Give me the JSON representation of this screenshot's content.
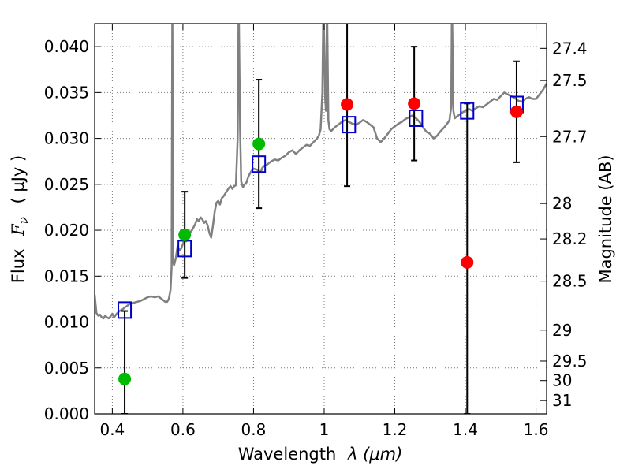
{
  "chart_data": {
    "type": "scatter",
    "title": "",
    "xlabel_main": "Wavelength",
    "xlabel_math": "λ (μm)",
    "ylabel_main": "Flux",
    "ylabel_math": "F",
    "ylabel_sub": "ν",
    "ylabel_unit": "( μJy )",
    "y2label": "Magnitude (AB)",
    "xlim": [
      0.35,
      1.63
    ],
    "ylim": [
      0.0,
      0.0425
    ],
    "grid": true,
    "x_ticks": [
      {
        "value": 0.4,
        "label": "0.4"
      },
      {
        "value": 0.6,
        "label": "0.6"
      },
      {
        "value": 0.8,
        "label": "0.8"
      },
      {
        "value": 1.0,
        "label": "1"
      },
      {
        "value": 1.2,
        "label": "1.2"
      },
      {
        "value": 1.4,
        "label": "1.4"
      },
      {
        "value": 1.6,
        "label": "1.6"
      }
    ],
    "y_ticks": [
      {
        "value": 0.0,
        "label": "0.000"
      },
      {
        "value": 0.005,
        "label": "0.005"
      },
      {
        "value": 0.01,
        "label": "0.010"
      },
      {
        "value": 0.015,
        "label": "0.015"
      },
      {
        "value": 0.02,
        "label": "0.020"
      },
      {
        "value": 0.025,
        "label": "0.025"
      },
      {
        "value": 0.03,
        "label": "0.030"
      },
      {
        "value": 0.035,
        "label": "0.035"
      },
      {
        "value": 0.04,
        "label": "0.040"
      }
    ],
    "magnitude_ticks": [
      {
        "mag": 27.4,
        "label": "27.4"
      },
      {
        "mag": 27.5,
        "label": "27.5"
      },
      {
        "mag": 27.7,
        "label": "27.7"
      },
      {
        "mag": 28.0,
        "label": "28"
      },
      {
        "mag": 28.2,
        "label": "28.2"
      },
      {
        "mag": 28.5,
        "label": "28.5"
      },
      {
        "mag": 29.0,
        "label": "29"
      },
      {
        "mag": 29.5,
        "label": "29.5"
      },
      {
        "mag": 30.0,
        "label": "30"
      },
      {
        "mag": 31.0,
        "label": "31"
      }
    ],
    "series": [
      {
        "kind": "spectrum",
        "color": "#808080",
        "points": [
          [
            0.35,
            0.013
          ],
          [
            0.355,
            0.011
          ],
          [
            0.36,
            0.0107
          ],
          [
            0.365,
            0.0108
          ],
          [
            0.37,
            0.0105
          ],
          [
            0.375,
            0.0104
          ],
          [
            0.38,
            0.0107
          ],
          [
            0.385,
            0.0105
          ],
          [
            0.39,
            0.0104
          ],
          [
            0.395,
            0.0106
          ],
          [
            0.4,
            0.0109
          ],
          [
            0.405,
            0.0105
          ],
          [
            0.41,
            0.0108
          ],
          [
            0.415,
            0.011
          ],
          [
            0.42,
            0.0112
          ],
          [
            0.425,
            0.0113
          ],
          [
            0.43,
            0.0114
          ],
          [
            0.435,
            0.0116
          ],
          [
            0.44,
            0.0117
          ],
          [
            0.45,
            0.012
          ],
          [
            0.46,
            0.0121
          ],
          [
            0.47,
            0.0122
          ],
          [
            0.48,
            0.0123
          ],
          [
            0.49,
            0.0125
          ],
          [
            0.5,
            0.0127
          ],
          [
            0.51,
            0.0128
          ],
          [
            0.52,
            0.0127
          ],
          [
            0.53,
            0.0128
          ],
          [
            0.54,
            0.0125
          ],
          [
            0.55,
            0.0122
          ],
          [
            0.555,
            0.0122
          ],
          [
            0.56,
            0.0125
          ],
          [
            0.565,
            0.0135
          ],
          [
            0.568,
            0.016
          ],
          [
            0.57,
            0.045
          ],
          [
            0.572,
            0.0165
          ],
          [
            0.575,
            0.0162
          ],
          [
            0.58,
            0.017
          ],
          [
            0.585,
            0.0183
          ],
          [
            0.59,
            0.0178
          ],
          [
            0.595,
            0.018
          ],
          [
            0.6,
            0.0185
          ],
          [
            0.605,
            0.019
          ],
          [
            0.61,
            0.0188
          ],
          [
            0.615,
            0.0193
          ],
          [
            0.62,
            0.0197
          ],
          [
            0.625,
            0.02
          ],
          [
            0.63,
            0.0203
          ],
          [
            0.635,
            0.0207
          ],
          [
            0.64,
            0.0212
          ],
          [
            0.645,
            0.021
          ],
          [
            0.65,
            0.0214
          ],
          [
            0.655,
            0.0212
          ],
          [
            0.66,
            0.0208
          ],
          [
            0.665,
            0.021
          ],
          [
            0.67,
            0.0205
          ],
          [
            0.675,
            0.0197
          ],
          [
            0.68,
            0.0192
          ],
          [
            0.685,
            0.0205
          ],
          [
            0.69,
            0.022
          ],
          [
            0.695,
            0.023
          ],
          [
            0.7,
            0.0232
          ],
          [
            0.705,
            0.0228
          ],
          [
            0.71,
            0.0235
          ],
          [
            0.715,
            0.0237
          ],
          [
            0.72,
            0.024
          ],
          [
            0.725,
            0.0243
          ],
          [
            0.73,
            0.0246
          ],
          [
            0.735,
            0.0248
          ],
          [
            0.74,
            0.0245
          ],
          [
            0.745,
            0.0248
          ],
          [
            0.75,
            0.0249
          ],
          [
            0.755,
            0.03
          ],
          [
            0.758,
            0.045
          ],
          [
            0.762,
            0.031
          ],
          [
            0.765,
            0.0253
          ],
          [
            0.77,
            0.0247
          ],
          [
            0.775,
            0.025
          ],
          [
            0.78,
            0.0252
          ],
          [
            0.785,
            0.0258
          ],
          [
            0.79,
            0.0262
          ],
          [
            0.795,
            0.0265
          ],
          [
            0.8,
            0.0267
          ],
          [
            0.81,
            0.0266
          ],
          [
            0.82,
            0.0263
          ],
          [
            0.825,
            0.0268
          ],
          [
            0.83,
            0.027
          ],
          [
            0.84,
            0.0272
          ],
          [
            0.85,
            0.0275
          ],
          [
            0.86,
            0.0277
          ],
          [
            0.87,
            0.0276
          ],
          [
            0.88,
            0.0279
          ],
          [
            0.89,
            0.0281
          ],
          [
            0.9,
            0.0285
          ],
          [
            0.91,
            0.0287
          ],
          [
            0.92,
            0.0283
          ],
          [
            0.93,
            0.0287
          ],
          [
            0.94,
            0.029
          ],
          [
            0.95,
            0.0293
          ],
          [
            0.96,
            0.0292
          ],
          [
            0.97,
            0.0296
          ],
          [
            0.98,
            0.03
          ],
          [
            0.985,
            0.0303
          ],
          [
            0.99,
            0.031
          ],
          [
            0.995,
            0.035
          ],
          [
            0.998,
            0.045
          ],
          [
            1.002,
            0.035
          ],
          [
            1.005,
            0.033
          ],
          [
            1.008,
            0.045
          ],
          [
            1.012,
            0.032
          ],
          [
            1.015,
            0.031
          ],
          [
            1.02,
            0.0308
          ],
          [
            1.03,
            0.0312
          ],
          [
            1.04,
            0.0315
          ],
          [
            1.05,
            0.0318
          ],
          [
            1.06,
            0.032
          ],
          [
            1.07,
            0.0318
          ],
          [
            1.08,
            0.0316
          ],
          [
            1.09,
            0.0315
          ],
          [
            1.1,
            0.0317
          ],
          [
            1.11,
            0.032
          ],
          [
            1.12,
            0.0318
          ],
          [
            1.13,
            0.0315
          ],
          [
            1.14,
            0.0312
          ],
          [
            1.15,
            0.03
          ],
          [
            1.16,
            0.0296
          ],
          [
            1.17,
            0.03
          ],
          [
            1.18,
            0.0305
          ],
          [
            1.19,
            0.031
          ],
          [
            1.2,
            0.0313
          ],
          [
            1.21,
            0.0316
          ],
          [
            1.22,
            0.0318
          ],
          [
            1.23,
            0.0321
          ],
          [
            1.24,
            0.0323
          ],
          [
            1.25,
            0.0325
          ],
          [
            1.26,
            0.0322
          ],
          [
            1.27,
            0.0318
          ],
          [
            1.28,
            0.0312
          ],
          [
            1.29,
            0.0307
          ],
          [
            1.3,
            0.0305
          ],
          [
            1.31,
            0.03
          ],
          [
            1.32,
            0.0303
          ],
          [
            1.33,
            0.0308
          ],
          [
            1.34,
            0.0312
          ],
          [
            1.35,
            0.0317
          ],
          [
            1.355,
            0.032
          ],
          [
            1.36,
            0.0335
          ],
          [
            1.362,
            0.045
          ],
          [
            1.366,
            0.033
          ],
          [
            1.37,
            0.0322
          ],
          [
            1.38,
            0.0325
          ],
          [
            1.39,
            0.0328
          ],
          [
            1.4,
            0.033
          ],
          [
            1.41,
            0.0332
          ],
          [
            1.42,
            0.033
          ],
          [
            1.43,
            0.0333
          ],
          [
            1.44,
            0.0335
          ],
          [
            1.45,
            0.0334
          ],
          [
            1.46,
            0.0337
          ],
          [
            1.47,
            0.034
          ],
          [
            1.48,
            0.0343
          ],
          [
            1.49,
            0.0342
          ],
          [
            1.5,
            0.0346
          ],
          [
            1.51,
            0.035
          ],
          [
            1.52,
            0.0348
          ],
          [
            1.53,
            0.0346
          ],
          [
            1.54,
            0.0344
          ],
          [
            1.55,
            0.0341
          ],
          [
            1.56,
            0.034
          ],
          [
            1.57,
            0.0343
          ],
          [
            1.58,
            0.0345
          ],
          [
            1.59,
            0.0343
          ],
          [
            1.6,
            0.0343
          ],
          [
            1.61,
            0.0348
          ],
          [
            1.62,
            0.0353
          ],
          [
            1.63,
            0.036
          ]
        ]
      },
      {
        "kind": "model",
        "marker": "open-square",
        "color": "#0000cc",
        "points": [
          {
            "x": 0.435,
            "y": 0.0113
          },
          {
            "x": 0.605,
            "y": 0.018
          },
          {
            "x": 0.815,
            "y": 0.0272
          },
          {
            "x": 1.07,
            "y": 0.0315
          },
          {
            "x": 1.26,
            "y": 0.0322
          },
          {
            "x": 1.405,
            "y": 0.033
          },
          {
            "x": 1.545,
            "y": 0.0337
          }
        ]
      },
      {
        "kind": "observed",
        "marker": "filled-circle",
        "color": "#00bb00",
        "points": [
          {
            "x": 0.435,
            "y": 0.0038,
            "yerr_low": 0.0038,
            "yerr_high": 0.0074
          },
          {
            "x": 0.605,
            "y": 0.0195,
            "yerr_low": 0.0047,
            "yerr_high": 0.0047
          },
          {
            "x": 0.815,
            "y": 0.0294,
            "yerr_low": 0.007,
            "yerr_high": 0.007
          }
        ]
      },
      {
        "kind": "observed",
        "marker": "filled-circle",
        "color": "#ff0000",
        "points": [
          {
            "x": 1.065,
            "y": 0.0337,
            "yerr_low": 0.0089,
            "yerr_high": 0.0113
          },
          {
            "x": 1.255,
            "y": 0.0338,
            "yerr_low": 0.0062,
            "yerr_high": 0.0062
          },
          {
            "x": 1.405,
            "y": 0.0165,
            "yerr_low": 0.0165,
            "yerr_high": 0.0173
          },
          {
            "x": 1.545,
            "y": 0.0329,
            "yerr_low": 0.0055,
            "yerr_high": 0.0055
          }
        ]
      }
    ]
  }
}
